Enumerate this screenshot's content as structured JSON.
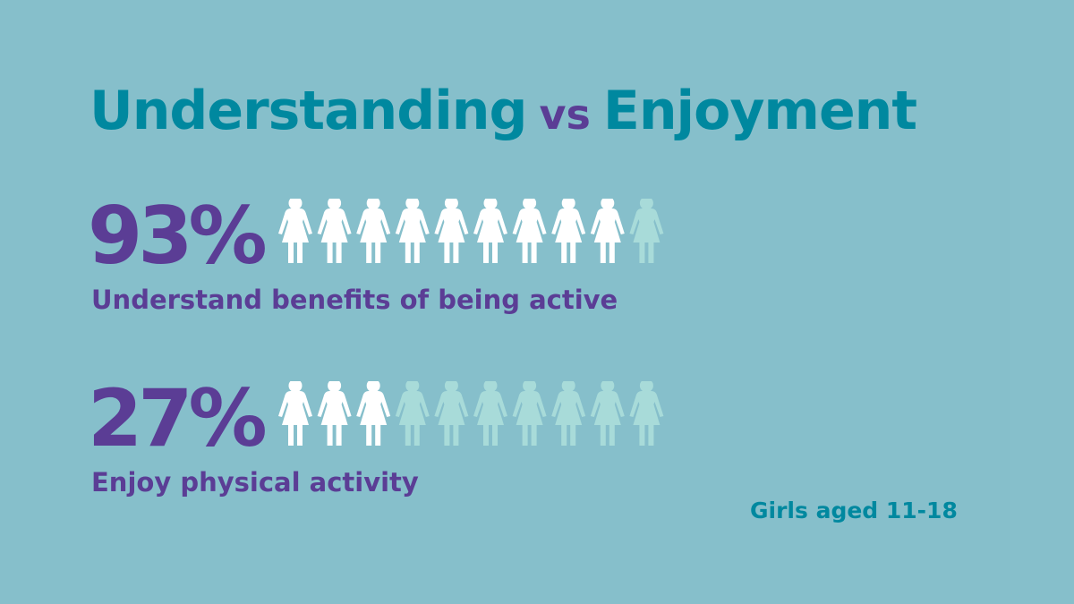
{
  "colors": {
    "background": "#86bfcb",
    "accent_teal": "#00889f",
    "accent_purple": "#5b3d95",
    "person_filled": "#ffffff",
    "person_empty": "#a8dbd9"
  },
  "title": {
    "word1": "Understanding",
    "vs": "vs",
    "word2": "Enjoyment"
  },
  "footnote": "Girls aged 11-18",
  "chart_data": {
    "type": "pictograph",
    "title": "Understanding vs Enjoyment",
    "unit_icon": "person-female-icon",
    "icons_per_row": 10,
    "note": "Girls aged 11-18",
    "series": [
      {
        "name": "Understand benefits of being active",
        "percent_label": "93%",
        "value": 93,
        "filled_icons": 9
      },
      {
        "name": "Enjoy physical activity",
        "percent_label": "27%",
        "value": 27,
        "filled_icons": 3
      }
    ]
  }
}
